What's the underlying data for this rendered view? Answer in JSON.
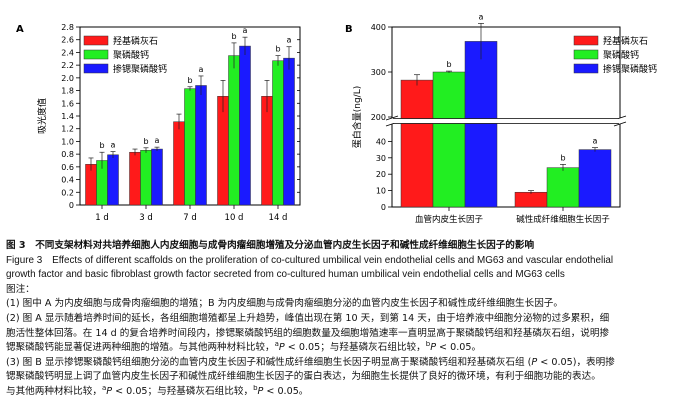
{
  "chart_data": [
    {
      "type": "bar",
      "panel_label": "A",
      "ylabel": "吸光度值",
      "ylim": [
        0,
        2.8
      ],
      "yticks": [
        "0",
        "0.2",
        "0.4",
        "0.6",
        "0.8",
        "1.0",
        "1.2",
        "1.4",
        "1.6",
        "1.8",
        "2.0",
        "2.2",
        "2.4",
        "2.6",
        "2.8"
      ],
      "categories": [
        "1 d",
        "3 d",
        "7 d",
        "10 d",
        "14 d"
      ],
      "series": [
        {
          "name": "羟基磷灰石",
          "color": "#ff1a1a",
          "values": [
            0.64,
            0.83,
            1.31,
            1.71,
            1.71
          ],
          "errors": [
            0.1,
            0.05,
            0.12,
            0.25,
            0.25
          ],
          "labels": [
            "",
            "",
            "",
            "",
            ""
          ]
        },
        {
          "name": "聚磷酸钙",
          "color": "#22ee22",
          "values": [
            0.7,
            0.86,
            1.83,
            2.35,
            2.27
          ],
          "errors": [
            0.13,
            0.04,
            0.03,
            0.2,
            0.08
          ],
          "labels": [
            "b",
            "b",
            "b",
            "b",
            "b"
          ]
        },
        {
          "name": "掺锶聚磷酸钙",
          "color": "#1a1aff",
          "values": [
            0.79,
            0.88,
            1.88,
            2.5,
            2.31
          ],
          "errors": [
            0.05,
            0.03,
            0.15,
            0.14,
            0.18
          ],
          "labels": [
            "a",
            "a",
            "a",
            "a",
            "a"
          ]
        }
      ],
      "legend_position": "top-left"
    },
    {
      "type": "bar",
      "panel_label": "B",
      "ylabel": "蛋白含量(ng/L)",
      "broken_axis": true,
      "upper_ylim": [
        200,
        400
      ],
      "upper_yticks": [
        "200",
        "300",
        "400"
      ],
      "lower_ylim": [
        0,
        50
      ],
      "lower_yticks": [
        "0",
        "10",
        "20",
        "30",
        "40"
      ],
      "categories": [
        "血管内皮生长因子",
        "碱性成纤维细胞生长因子"
      ],
      "series": [
        {
          "name": "羟基磷灰石",
          "color": "#ff1a1a",
          "values": [
            282,
            9
          ],
          "errors": [
            12,
            1
          ],
          "labels": [
            "",
            ""
          ]
        },
        {
          "name": "聚磷酸钙",
          "color": "#22ee22",
          "values": [
            300,
            24
          ],
          "errors": [
            2,
            2
          ],
          "labels": [
            "b",
            "b"
          ]
        },
        {
          "name": "掺锶聚磷酸钙",
          "color": "#1a1aff",
          "values": [
            368,
            35
          ],
          "errors": [
            40,
            1.2
          ],
          "labels": [
            "a",
            "a"
          ]
        }
      ],
      "legend_position": "top-right"
    }
  ],
  "caption": {
    "title_cn": "图 3　不同支架材料对共培养细胞人内皮细胞与成骨肉瘤细胞增殖及分泌血管内皮生长因子和碱性成纤维细胞生长因子的影响",
    "title_en_1": "Figure 3　Effects of different scaffolds on the proliferation of co-cultured umbilical vein endothelial cells and MG63 and vascular endothelial",
    "title_en_2": "growth factor and basic fibroblast growth factor secreted from co-cultured human umbilical vein endothelial cells and MG63 cells",
    "note_head": "图注：",
    "note1": "(1) 图中 A 为内皮细胞与成骨肉瘤细胞的增殖；B 为内皮细胞与成骨肉瘤细胞分泌的血管内皮生长因子和碱性成纤维细胞生长因子。",
    "note2_a": "(2) 图 A 显示随着培养时间的延长，各组细胞增殖都呈上升趋势，峰值出现在第 10 天，到第 14 天，由于培养液中细胞分泌物的过多累积，细",
    "note2_b": "胞活性整体回落。在 14 d 的复合培养时间段内，掺锶聚磷酸钙组的细胞数量及细胞增殖速率一直明显高于聚磷酸钙组和羟基磷灰石组，说明掺",
    "note2_c_pre": "锶聚磷酸钙能显著促进两种细胞的增殖。与其他两种材料比较，",
    "note3_a_pre": "(3) 图 B 显示掺锶聚磷酸钙组细胞分泌的血管内皮生长因子和碱性成纤维细胞生长因子明显高于聚磷酸钙组和羟基磷灰石组 (",
    "note3_a_post": " < 0.05)，表明掺",
    "note3_b": "锶聚磷酸钙明显上调了血管内皮生长因子和碱性成纤维细胞生长因子的蛋白表达，为细胞生长提供了良好的微环境，有利于细胞功能的表达。",
    "note3_c_pre": "与其他两种材料比较，",
    "sup_a": "a",
    "sup_b": "b",
    "p_letter": "P",
    "p_lt": " < 0.05；与羟基磷灰石组比较，",
    "p_end": " < 0.05。"
  }
}
